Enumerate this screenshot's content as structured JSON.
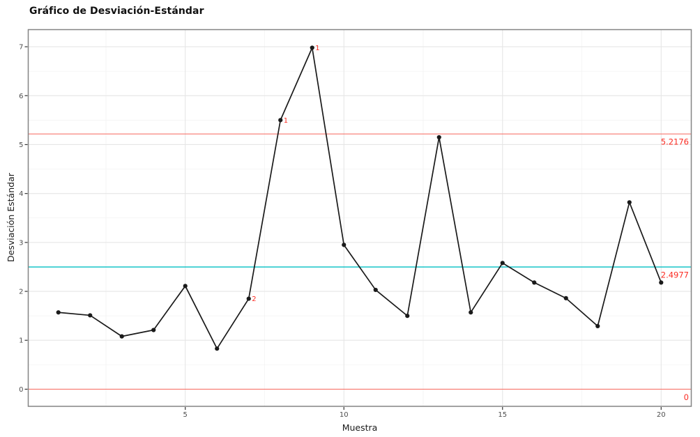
{
  "chart_data": {
    "type": "line",
    "title": "Gráfico de Desviación-Estándar",
    "xlabel": "Muestra",
    "ylabel": "Desviación Estándar",
    "x": [
      1,
      2,
      3,
      4,
      5,
      6,
      7,
      8,
      9,
      10,
      11,
      12,
      13,
      14,
      15,
      16,
      17,
      18,
      19,
      20
    ],
    "values": [
      1.57,
      1.51,
      1.08,
      1.21,
      2.11,
      0.83,
      1.85,
      5.5,
      6.98,
      2.95,
      2.03,
      1.5,
      5.15,
      1.57,
      2.58,
      2.18,
      1.86,
      1.29,
      3.82,
      2.18
    ],
    "series_color": "#1a1a1a",
    "center_line": {
      "name": "CL",
      "value": 2.4977,
      "label": "2.4977",
      "color": "#00BFC4"
    },
    "limit_lines": [
      {
        "name": "UCL",
        "value": 5.2176,
        "label": "5.2176"
      },
      {
        "name": "LCL",
        "value": 0,
        "label": "0"
      }
    ],
    "limit_line_color": "#F8766D",
    "label_color": "#FB2C23",
    "violation_labels": [
      {
        "x": 7,
        "label": "2"
      },
      {
        "x": 8,
        "label": "1"
      },
      {
        "x": 9,
        "label": "1"
      }
    ],
    "x_ticks": [
      5,
      10,
      15,
      20
    ],
    "x_minor_ticks": [
      2.5,
      7.5,
      12.5,
      17.5
    ],
    "y_ticks": [
      0,
      1,
      2,
      3,
      4,
      5,
      6,
      7
    ],
    "y_minor_ticks": [
      0.5,
      1.5,
      2.5,
      3.5,
      4.5,
      5.5,
      6.5
    ],
    "xlim": [
      0.05,
      20.95
    ],
    "ylim": [
      -0.35,
      7.35
    ],
    "grid": true,
    "legend": false,
    "panel_border_color": "#848484",
    "major_grid_color": "#e6e6e6",
    "minor_grid_color": "#f2f2f2",
    "tick_color": "#333333",
    "tick_label_color": "#4d4d4d"
  }
}
